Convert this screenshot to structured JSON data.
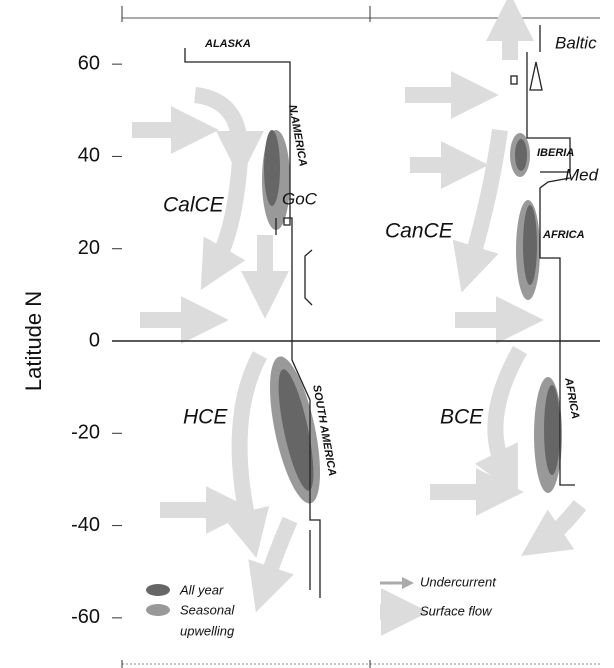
{
  "axis": {
    "label": "Latitude N",
    "ylim": [
      -70,
      70
    ],
    "yticks": [
      -60,
      -40,
      -20,
      0,
      20,
      40,
      60
    ]
  },
  "regions": [
    "CalCE",
    "CanCE",
    "HCE",
    "BCE"
  ],
  "places": [
    "ALASKA",
    "N.AMERICA",
    "GoC",
    "Baltic",
    "IBERIA",
    "Med",
    "AFRICA",
    "SOUTH AMERICA",
    "AFRICA"
  ],
  "legend": [
    "All year",
    "Seasonal",
    "upwelling",
    "Undercurrent",
    "Surface flow"
  ]
}
